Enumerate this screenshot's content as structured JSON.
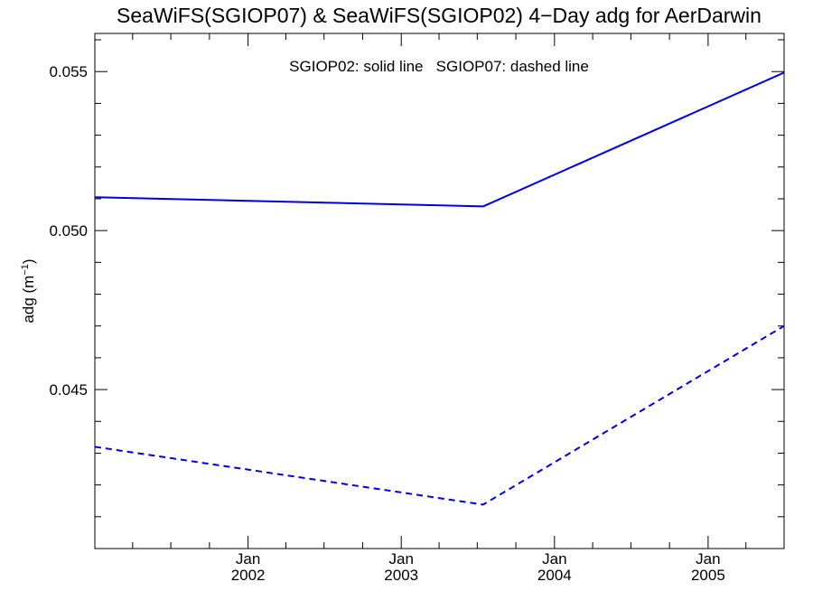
{
  "chart_data": {
    "type": "line",
    "title": "SeaWiFS(SGIOP07) & SeaWiFS(SGIOP02) 4−Day adg for AerDarwin",
    "annotation": "SGIOP02: solid line   SGIOP07: dashed line",
    "xlabel": "",
    "ylabel": "adg (m",
    "ylabel_superscript": "−1",
    "ylabel_close": ")",
    "xlim": [
      "2001-01-01",
      "2005-07-01"
    ],
    "ylim": [
      0.04,
      0.0562
    ],
    "y_major_ticks": [
      0.045,
      0.05,
      0.055
    ],
    "y_tick_labels": [
      "0.045",
      "0.050",
      "0.055"
    ],
    "y_minor_step": 0.001,
    "x_major_ticks": [
      {
        "date": "2002-01-01",
        "month": "Jan",
        "year": "2002"
      },
      {
        "date": "2003-01-01",
        "month": "Jan",
        "year": "2003"
      },
      {
        "date": "2004-01-01",
        "month": "Jan",
        "year": "2004"
      },
      {
        "date": "2005-01-01",
        "month": "Jan",
        "year": "2005"
      }
    ],
    "grid": false,
    "series": [
      {
        "name": "SGIOP02",
        "style": "solid",
        "color": "#0000dd",
        "points": [
          {
            "x": "2001-01-01",
            "y": 0.05105
          },
          {
            "x": "2003-07-15",
            "y": 0.05076
          },
          {
            "x": "2005-07-01",
            "y": 0.05497
          }
        ]
      },
      {
        "name": "SGIOP07",
        "style": "dashed",
        "color": "#0000dd",
        "points": [
          {
            "x": "2001-01-01",
            "y": 0.0432
          },
          {
            "x": "2003-07-15",
            "y": 0.04138
          },
          {
            "x": "2005-07-01",
            "y": 0.047
          }
        ]
      }
    ]
  }
}
